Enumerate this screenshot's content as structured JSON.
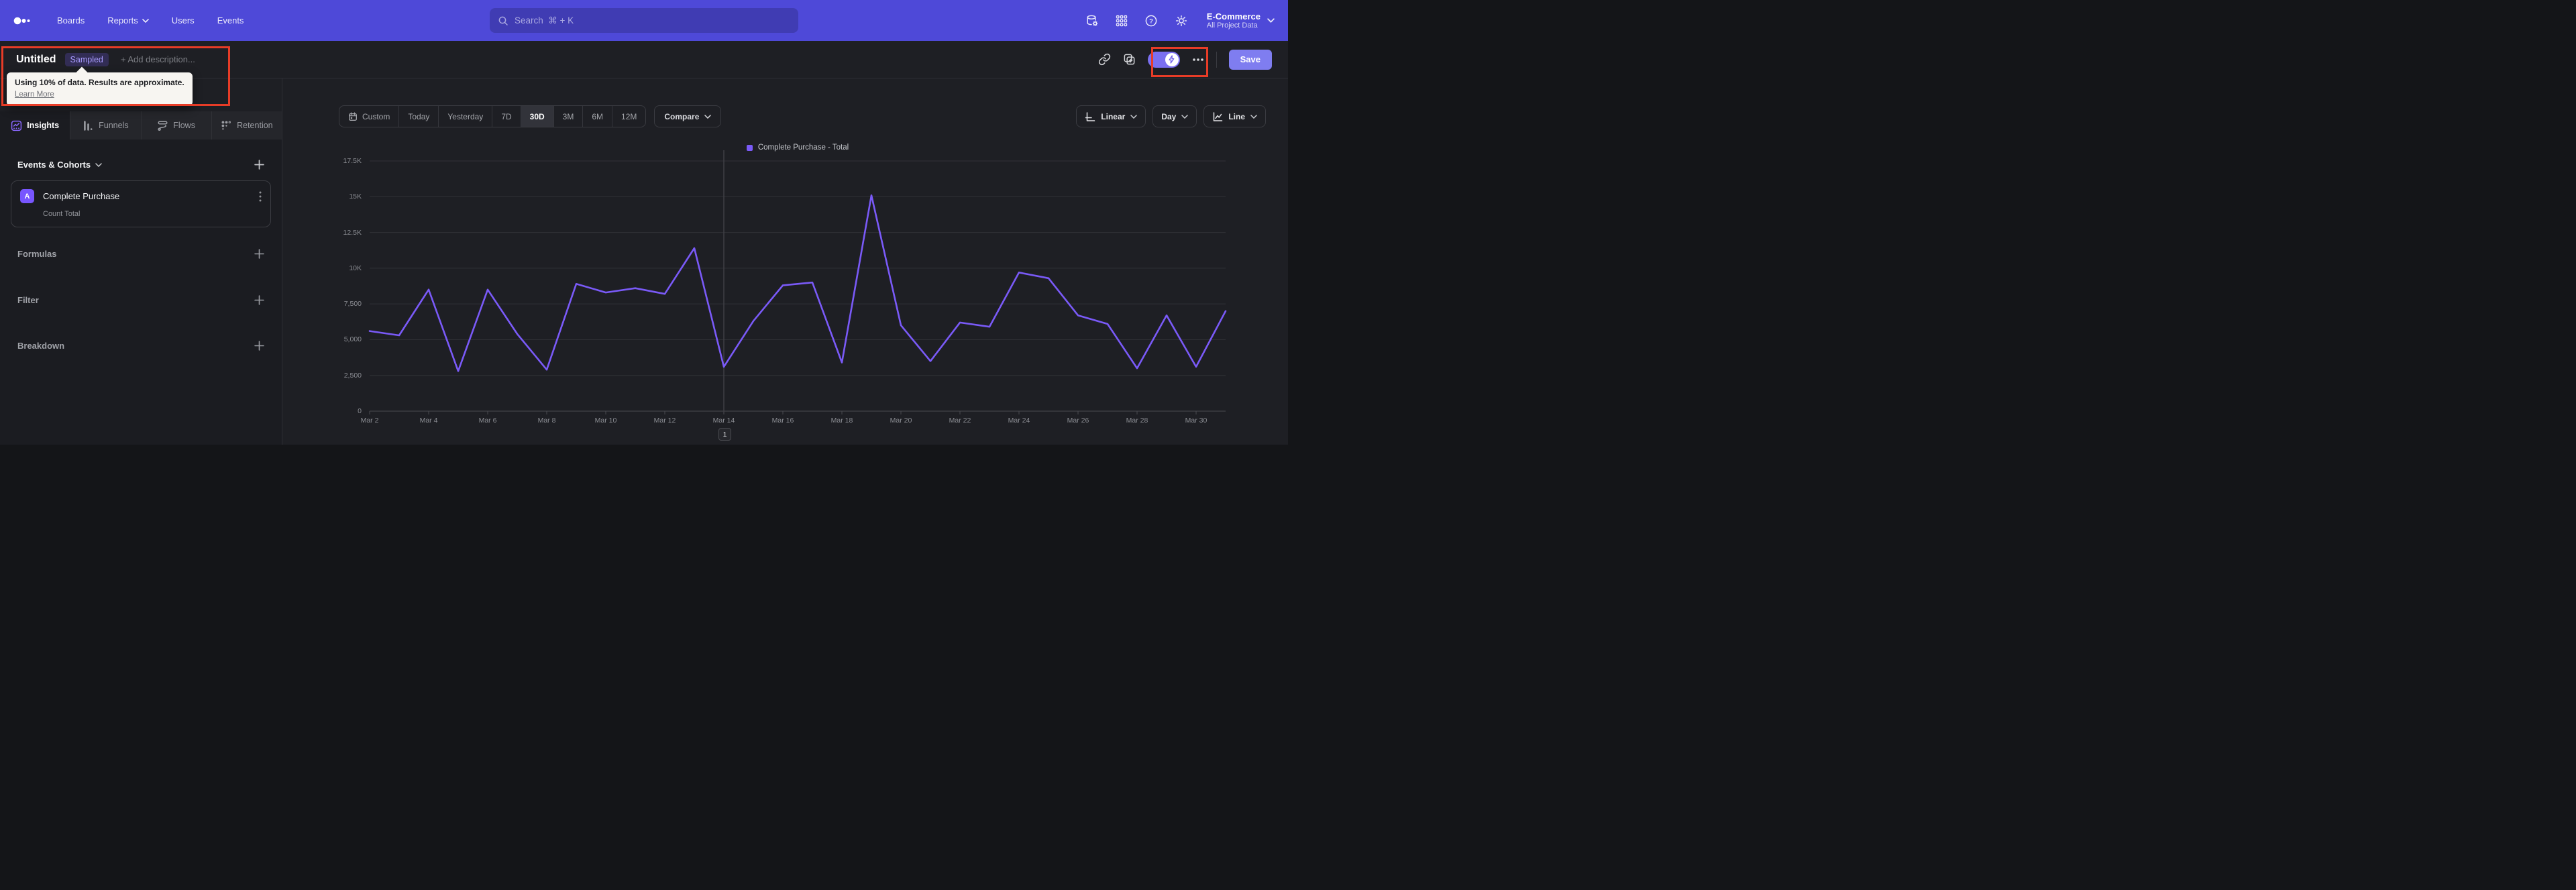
{
  "nav": {
    "links": [
      {
        "label": "Boards"
      },
      {
        "label": "Reports",
        "has_menu": true
      },
      {
        "label": "Users"
      },
      {
        "label": "Events"
      }
    ],
    "search_placeholder": "Search  ⌘ + K",
    "project": {
      "name": "E-Commerce",
      "scope": "All Project Data"
    }
  },
  "header": {
    "title": "Untitled",
    "badge": "Sampled",
    "description_placeholder": "+ Add description...",
    "save_label": "Save"
  },
  "sampling_tooltip": {
    "text": "Using 10% of data. Results are approximate.",
    "link": "Learn More"
  },
  "sidebar": {
    "tabs": [
      {
        "label": "Insights",
        "active": true
      },
      {
        "label": "Funnels",
        "active": false
      },
      {
        "label": "Flows",
        "active": false
      },
      {
        "label": "Retention",
        "active": false
      }
    ],
    "events_section": {
      "title": "Events & Cohorts"
    },
    "event_card": {
      "letter": "A",
      "name": "Complete Purchase",
      "metric": "Count Total"
    },
    "sections": [
      {
        "label": "Formulas"
      },
      {
        "label": "Filter"
      },
      {
        "label": "Breakdown"
      }
    ]
  },
  "toolbar": {
    "ranges": [
      "Custom",
      "Today",
      "Yesterday",
      "7D",
      "30D",
      "3M",
      "6M",
      "12M"
    ],
    "active_range": "30D",
    "compare_label": "Compare",
    "scale_label": "Linear",
    "granularity_label": "Day",
    "chart_type_label": "Line"
  },
  "pagination": {
    "page": "1"
  },
  "colors": {
    "nav_bg": "#4e49d8",
    "accent_purple": "#7856ff",
    "series_purple": "#7a5af8",
    "annotation_red": "#e73c27",
    "save_bg": "#7f7df0"
  },
  "chart_data": {
    "type": "line",
    "title": "",
    "xlabel": "",
    "ylabel": "",
    "ylim": [
      0,
      17500
    ],
    "grid": "horizontal",
    "legend_position": "top-center",
    "y_ticks": [
      "0",
      "2,500",
      "5,000",
      "7,500",
      "10K",
      "12.5K",
      "15K",
      "17.5K"
    ],
    "x": [
      "Mar 2",
      "Mar 3",
      "Mar 4",
      "Mar 5",
      "Mar 6",
      "Mar 7",
      "Mar 8",
      "Mar 9",
      "Mar 10",
      "Mar 11",
      "Mar 12",
      "Mar 13",
      "Mar 14",
      "Mar 15",
      "Mar 16",
      "Mar 17",
      "Mar 18",
      "Mar 19",
      "Mar 20",
      "Mar 21",
      "Mar 22",
      "Mar 23",
      "Mar 24",
      "Mar 25",
      "Mar 26",
      "Mar 27",
      "Mar 28",
      "Mar 29",
      "Mar 30",
      "Mar 31"
    ],
    "x_tick_labels": [
      "Mar 2",
      "Mar 4",
      "Mar 6",
      "Mar 8",
      "Mar 10",
      "Mar 12",
      "Mar 14",
      "Mar 16",
      "Mar 18",
      "Mar 20",
      "Mar 22",
      "Mar 24",
      "Mar 26",
      "Mar 28",
      "Mar 30"
    ],
    "vertical_marker_x": "Mar 14",
    "series": [
      {
        "name": "Complete Purchase - Total",
        "color": "#7a5af8",
        "values": [
          5600,
          5300,
          8500,
          2800,
          8500,
          5400,
          2900,
          8900,
          8300,
          8600,
          8200,
          11400,
          3100,
          6300,
          8800,
          9000,
          3400,
          15100,
          6000,
          3500,
          6200,
          5900,
          9700,
          9300,
          6700,
          6100,
          3000,
          6700,
          3100,
          7000
        ]
      }
    ]
  }
}
